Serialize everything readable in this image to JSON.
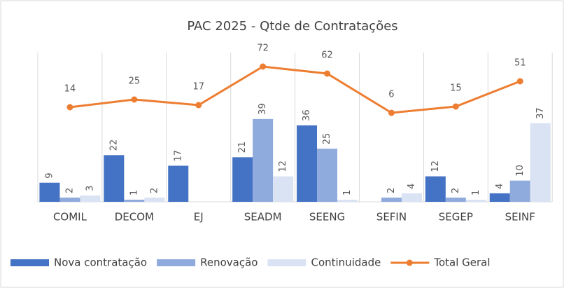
{
  "chart_data": {
    "type": "bar-line",
    "title": "PAC 2025 - Qtde de Contratações",
    "categories": [
      "COMIL",
      "DECOM",
      "EJ",
      "SEADM",
      "SEENG",
      "SEFIN",
      "SEGEP",
      "SEINF"
    ],
    "series": [
      {
        "name": "Nova contratação",
        "color": "#4472c4",
        "type": "bar",
        "values": [
          9,
          22,
          17,
          21,
          36,
          null,
          12,
          4
        ]
      },
      {
        "name": "Renovação",
        "color": "#8faadc",
        "type": "bar",
        "values": [
          2,
          1,
          null,
          39,
          25,
          2,
          2,
          10
        ]
      },
      {
        "name": "Continuidade",
        "color": "#dae3f3",
        "type": "bar",
        "values": [
          3,
          2,
          null,
          12,
          1,
          4,
          1,
          37
        ]
      },
      {
        "name": "Total Geral",
        "color": "#ed7d31",
        "type": "line",
        "axis": "y2",
        "values": [
          14,
          25,
          17,
          72,
          62,
          6,
          15,
          51
        ]
      }
    ]
  }
}
